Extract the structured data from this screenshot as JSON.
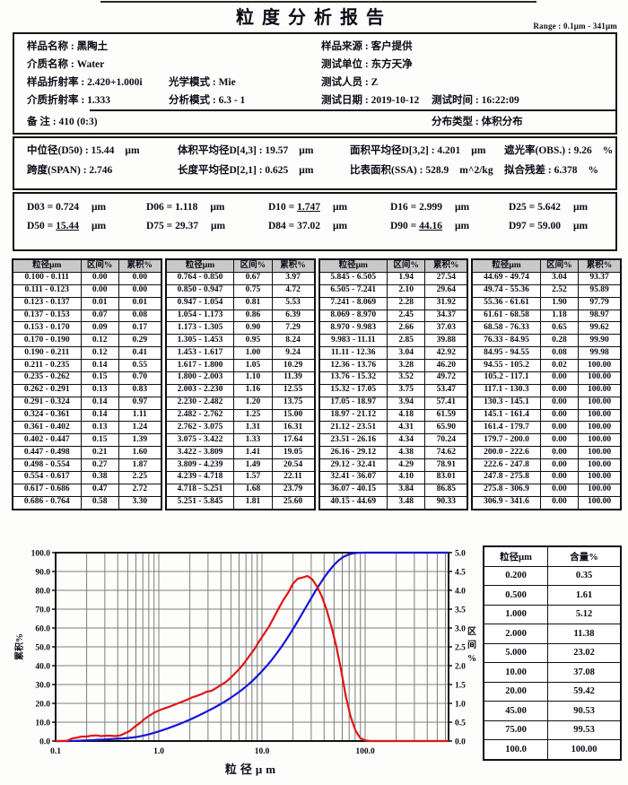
{
  "header": {
    "title": "粒度分析报告",
    "range": "Range : 0.1μm - 341μm"
  },
  "info": {
    "sample_name": "样品名称 : 黑陶土",
    "medium_name": "介质名称 : Water",
    "sample_ri": "样品折射率 : 2.420+1.000i",
    "optical_model": "光学模式 : Mie",
    "medium_ri": "介质折射率 : 1.333",
    "analysis_model": "分析模式 : 6.3 - 1",
    "remark": "备  注 :    410   (0:3)",
    "sample_source": "样品来源 : 客户提供",
    "test_unit": "测试单位 : 东方天净",
    "test_person": "测试人员 : Z",
    "test_date": "测试日期 : 2019-10-12",
    "test_time": "测试时间 : 16:22:09",
    "dist_type": "分布类型 : 体积分布"
  },
  "stats": [
    {
      "label": "中位径(D50)",
      "value": "15.44",
      "unit": "μm"
    },
    {
      "label": "体积平均径D[4,3]",
      "value": "19.57",
      "unit": "μm"
    },
    {
      "label": "面积平均径D[3,2]",
      "value": "4.201",
      "unit": "μm"
    },
    {
      "label": "遮光率(OBS.)",
      "value": "9.26",
      "unit": "%"
    },
    {
      "label": "跨度(SPAN)",
      "value": "2.746",
      "unit": ""
    },
    {
      "label": "长度平均径D[2,1]",
      "value": "0.625",
      "unit": "μm"
    },
    {
      "label": "比表面积(SSA)",
      "value": "528.9",
      "unit": "m^2/kg"
    },
    {
      "label": "拟合残差",
      "value": "6.378",
      "unit": "%"
    }
  ],
  "percentiles": [
    {
      "name": "D03",
      "value": "0.724",
      "unit": "μm",
      "underline": false
    },
    {
      "name": "D06",
      "value": "1.118",
      "unit": "μm",
      "underline": false
    },
    {
      "name": "D10",
      "value": "1.747",
      "unit": "μm",
      "underline": true
    },
    {
      "name": "D16",
      "value": "2.999",
      "unit": "μm",
      "underline": false
    },
    {
      "name": "D25",
      "value": "5.642",
      "unit": "μm",
      "underline": false
    },
    {
      "name": "D50",
      "value": "15.44",
      "unit": "μm",
      "underline": true
    },
    {
      "name": "D75",
      "value": "29.37",
      "unit": "μm",
      "underline": false
    },
    {
      "name": "D84",
      "value": "37.02",
      "unit": "μm",
      "underline": false
    },
    {
      "name": "D90",
      "value": "44.16",
      "unit": "μm",
      "underline": true
    },
    {
      "name": "D97",
      "value": "59.00",
      "unit": "μm",
      "underline": false
    }
  ],
  "distribution_table": {
    "headers": [
      "粒径μm",
      "区间%",
      "累积%"
    ],
    "groups": [
      [
        [
          "0.100 - 0.111",
          "0.00",
          "0.00"
        ],
        [
          "0.111 - 0.123",
          "0.00",
          "0.00"
        ],
        [
          "0.123 - 0.137",
          "0.01",
          "0.01"
        ],
        [
          "0.137 - 0.153",
          "0.07",
          "0.08"
        ],
        [
          "0.153 - 0.170",
          "0.09",
          "0.17"
        ],
        [
          "0.170 - 0.190",
          "0.12",
          "0.29"
        ],
        [
          "0.190 - 0.211",
          "0.12",
          "0.41"
        ],
        [
          "0.211 - 0.235",
          "0.14",
          "0.55"
        ],
        [
          "0.235 - 0.262",
          "0.15",
          "0.70"
        ],
        [
          "0.262 - 0.291",
          "0.13",
          "0.83"
        ],
        [
          "0.291 - 0.324",
          "0.14",
          "0.97"
        ],
        [
          "0.324 - 0.361",
          "0.14",
          "1.11"
        ],
        [
          "0.361 - 0.402",
          "0.13",
          "1.24"
        ],
        [
          "0.402 - 0.447",
          "0.15",
          "1.39"
        ],
        [
          "0.447 - 0.498",
          "0.21",
          "1.60"
        ],
        [
          "0.498 - 0.554",
          "0.27",
          "1.87"
        ],
        [
          "0.554 - 0.617",
          "0.38",
          "2.25"
        ],
        [
          "0.617 - 0.686",
          "0.47",
          "2.72"
        ],
        [
          "0.686 - 0.764",
          "0.58",
          "3.30"
        ]
      ],
      [
        [
          "0.764 - 0.850",
          "0.67",
          "3.97"
        ],
        [
          "0.850 - 0.947",
          "0.75",
          "4.72"
        ],
        [
          "0.947 - 1.054",
          "0.81",
          "5.53"
        ],
        [
          "1.054 - 1.173",
          "0.86",
          "6.39"
        ],
        [
          "1.173 - 1.305",
          "0.90",
          "7.29"
        ],
        [
          "1.305 - 1.453",
          "0.95",
          "8.24"
        ],
        [
          "1.453 - 1.617",
          "1.00",
          "9.24"
        ],
        [
          "1.617 - 1.800",
          "1.05",
          "10.29"
        ],
        [
          "1.800 - 2.003",
          "1.10",
          "11.39"
        ],
        [
          "2.003 - 2.230",
          "1.16",
          "12.55"
        ],
        [
          "2.230 - 2.482",
          "1.20",
          "13.75"
        ],
        [
          "2.482 - 2.762",
          "1.25",
          "15.00"
        ],
        [
          "2.762 - 3.075",
          "1.31",
          "16.31"
        ],
        [
          "3.075 - 3.422",
          "1.33",
          "17.64"
        ],
        [
          "3.422 - 3.809",
          "1.41",
          "19.05"
        ],
        [
          "3.809 - 4.239",
          "1.49",
          "20.54"
        ],
        [
          "4.239 - 4.718",
          "1.57",
          "22.11"
        ],
        [
          "4.718 - 5.251",
          "1.68",
          "23.79"
        ],
        [
          "5.251 - 5.845",
          "1.81",
          "25.60"
        ]
      ],
      [
        [
          "5.845 - 6.505",
          "1.94",
          "27.54"
        ],
        [
          "6.505 - 7.241",
          "2.10",
          "29.64"
        ],
        [
          "7.241 - 8.069",
          "2.28",
          "31.92"
        ],
        [
          "8.069 - 8.970",
          "2.45",
          "34.37"
        ],
        [
          "8.970 - 9.983",
          "2.66",
          "37.03"
        ],
        [
          "9.983 - 11.11",
          "2.85",
          "39.88"
        ],
        [
          "11.11 - 12.36",
          "3.04",
          "42.92"
        ],
        [
          "12.36 - 13.76",
          "3.28",
          "46.20"
        ],
        [
          "13.76 - 15.32",
          "3.52",
          "49.72"
        ],
        [
          "15.32 - 17.05",
          "3.75",
          "53.47"
        ],
        [
          "17.05 - 18.97",
          "3.94",
          "57.41"
        ],
        [
          "18.97 - 21.12",
          "4.18",
          "61.59"
        ],
        [
          "21.12 - 23.51",
          "4.31",
          "65.90"
        ],
        [
          "23.51 - 26.16",
          "4.34",
          "70.24"
        ],
        [
          "26.16 - 29.12",
          "4.38",
          "74.62"
        ],
        [
          "29.12 - 32.41",
          "4.29",
          "78.91"
        ],
        [
          "32.41 - 36.07",
          "4.10",
          "83.01"
        ],
        [
          "36.07 - 40.15",
          "3.84",
          "86.85"
        ],
        [
          "40.15 - 44.69",
          "3.48",
          "90.33"
        ]
      ],
      [
        [
          "44.69 - 49.74",
          "3.04",
          "93.37"
        ],
        [
          "49.74 - 55.36",
          "2.52",
          "95.89"
        ],
        [
          "55.36 - 61.61",
          "1.90",
          "97.79"
        ],
        [
          "61.61 - 68.58",
          "1.18",
          "98.97"
        ],
        [
          "68.58 - 76.33",
          "0.65",
          "99.62"
        ],
        [
          "76.33 - 84.95",
          "0.28",
          "99.90"
        ],
        [
          "84.95 - 94.55",
          "0.08",
          "99.98"
        ],
        [
          "94.55 - 105.2",
          "0.02",
          "100.00"
        ],
        [
          "105.2 - 117.1",
          "0.00",
          "100.00"
        ],
        [
          "117.1 - 130.3",
          "0.00",
          "100.00"
        ],
        [
          "130.3 - 145.1",
          "0.00",
          "100.00"
        ],
        [
          "145.1 - 161.4",
          "0.00",
          "100.00"
        ],
        [
          "161.4 - 179.7",
          "0.00",
          "100.00"
        ],
        [
          "179.7 - 200.0",
          "0.00",
          "100.00"
        ],
        [
          "200.0 - 222.6",
          "0.00",
          "100.00"
        ],
        [
          "222.6 - 247.8",
          "0.00",
          "100.00"
        ],
        [
          "247.8 - 275.8",
          "0.00",
          "100.00"
        ],
        [
          "275.8 - 306.9",
          "0.00",
          "100.00"
        ],
        [
          "306.9 - 341.6",
          "0.00",
          "100.00"
        ]
      ]
    ]
  },
  "side_table": {
    "headers": [
      "粒径μm",
      "含量%"
    ],
    "rows": [
      [
        "0.200",
        "0.35"
      ],
      [
        "0.500",
        "1.61"
      ],
      [
        "1.000",
        "5.12"
      ],
      [
        "2.000",
        "11.38"
      ],
      [
        "5.000",
        "23.02"
      ],
      [
        "10.00",
        "37.08"
      ],
      [
        "20.00",
        "59.42"
      ],
      [
        "45.00",
        "90.53"
      ],
      [
        "75.00",
        "99.53"
      ],
      [
        "100.0",
        "100.00"
      ]
    ]
  },
  "chart_data": {
    "type": "line",
    "x": {
      "label": "粒径μm",
      "scale": "log",
      "min": 0.1,
      "max": 630,
      "tick_labels": [
        "0.1",
        "1.0",
        "10.0",
        "100.0"
      ],
      "tick_values": [
        0.1,
        1.0,
        10.0,
        100.0
      ]
    },
    "y_left": {
      "label": "累积%",
      "min": 0,
      "max": 100,
      "step": 10
    },
    "y_right": {
      "label": "区间%",
      "min": 0,
      "max": 5,
      "step": 0.5
    },
    "grid": true,
    "bin_edges": [
      0.1,
      0.111,
      0.123,
      0.137,
      0.153,
      0.17,
      0.19,
      0.211,
      0.235,
      0.262,
      0.291,
      0.324,
      0.361,
      0.402,
      0.447,
      0.498,
      0.554,
      0.617,
      0.686,
      0.764,
      0.85,
      0.947,
      1.054,
      1.173,
      1.305,
      1.453,
      1.617,
      1.8,
      2.003,
      2.23,
      2.482,
      2.762,
      3.075,
      3.422,
      3.809,
      4.239,
      4.718,
      5.251,
      5.845,
      6.505,
      7.241,
      8.069,
      8.97,
      9.983,
      11.11,
      12.36,
      13.76,
      15.32,
      17.05,
      18.97,
      21.12,
      23.51,
      26.16,
      29.12,
      32.41,
      36.07,
      40.15,
      44.69,
      49.74,
      55.36,
      61.61,
      68.58,
      76.33,
      84.95,
      94.55,
      105.2,
      117.1,
      130.3,
      145.1,
      161.4,
      179.7,
      200.0,
      222.6,
      247.8,
      275.8,
      306.9,
      341.6
    ],
    "series": [
      {
        "name": "累积%",
        "axis": "left",
        "color": "#1515d8",
        "values": [
          0.0,
          0.0,
          0.01,
          0.08,
          0.17,
          0.29,
          0.41,
          0.55,
          0.7,
          0.83,
          0.97,
          1.11,
          1.24,
          1.39,
          1.6,
          1.87,
          2.25,
          2.72,
          3.3,
          3.97,
          4.72,
          5.53,
          6.39,
          7.29,
          8.24,
          9.24,
          10.29,
          11.39,
          12.55,
          13.75,
          15.0,
          16.31,
          17.64,
          19.05,
          20.54,
          22.11,
          23.79,
          25.6,
          27.54,
          29.64,
          31.92,
          34.37,
          37.03,
          39.88,
          42.92,
          46.2,
          49.72,
          53.47,
          57.41,
          61.59,
          65.9,
          70.24,
          74.62,
          78.91,
          83.01,
          86.85,
          90.33,
          93.37,
          95.89,
          97.79,
          98.97,
          99.62,
          99.9,
          99.98,
          100.0,
          100.0,
          100.0,
          100.0,
          100.0,
          100.0,
          100.0,
          100.0,
          100.0,
          100.0,
          100.0,
          100.0
        ]
      },
      {
        "name": "区间%",
        "axis": "right",
        "color": "#e01515",
        "values": [
          0.0,
          0.0,
          0.01,
          0.07,
          0.09,
          0.12,
          0.12,
          0.14,
          0.15,
          0.13,
          0.14,
          0.14,
          0.13,
          0.15,
          0.21,
          0.27,
          0.38,
          0.47,
          0.58,
          0.67,
          0.75,
          0.81,
          0.86,
          0.9,
          0.95,
          1.0,
          1.05,
          1.1,
          1.16,
          1.2,
          1.25,
          1.31,
          1.33,
          1.41,
          1.49,
          1.57,
          1.68,
          1.81,
          1.94,
          2.1,
          2.28,
          2.45,
          2.66,
          2.85,
          3.04,
          3.28,
          3.52,
          3.75,
          3.94,
          4.18,
          4.31,
          4.34,
          4.38,
          4.29,
          4.1,
          3.84,
          3.48,
          3.04,
          2.52,
          1.9,
          1.18,
          0.65,
          0.28,
          0.08,
          0.02,
          0.0,
          0.0,
          0.0,
          0.0,
          0.0,
          0.0,
          0.0,
          0.0,
          0.0,
          0.0,
          0.0
        ]
      }
    ]
  }
}
